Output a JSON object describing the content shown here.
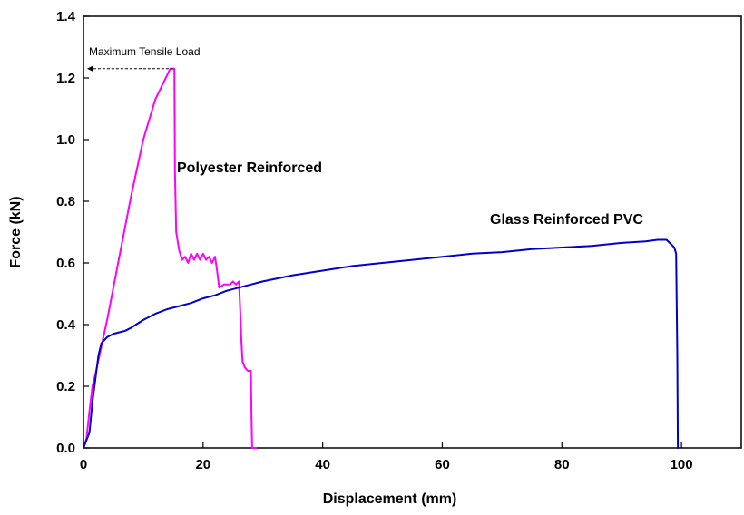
{
  "chart_data": {
    "type": "line",
    "xlabel": "Displacement (mm)",
    "ylabel": "Force (kN)",
    "xlim": [
      0,
      110
    ],
    "ylim": [
      0,
      1.4
    ],
    "x_ticks": [
      0,
      20,
      40,
      60,
      80,
      100
    ],
    "x_tick_labels": [
      "0",
      "20",
      "40",
      "60",
      "80",
      "100"
    ],
    "y_ticks": [
      0,
      0.2,
      0.4,
      0.6,
      0.8,
      1.0,
      1.2,
      1.4
    ],
    "y_tick_labels": [
      "0.0",
      "0.2",
      "0.4",
      "0.6",
      "0.8",
      "1.0",
      "1.2",
      "1.4"
    ],
    "grid": false,
    "series": [
      {
        "name": "Polyester Reinforced",
        "color": "#ff00ff",
        "x": [
          0,
          0.5,
          1.0,
          1.5,
          2,
          4,
          6,
          8,
          10,
          12,
          13.5,
          14.5,
          14.9,
          15.2,
          15.3,
          15.5,
          16.0,
          16.5,
          17.0,
          17.5,
          18.0,
          18.5,
          19.0,
          19.5,
          20.0,
          20.5,
          21.0,
          21.5,
          22.0,
          22.3,
          22.7,
          23.5,
          24.5,
          25.0,
          25.5,
          26.0,
          26.2,
          26.4,
          26.6,
          27.0,
          27.5,
          28.0,
          28.1,
          28.2,
          28.3,
          29.0
        ],
        "y": [
          0,
          0.03,
          0.12,
          0.2,
          0.24,
          0.42,
          0.62,
          0.82,
          1.0,
          1.13,
          1.19,
          1.23,
          1.23,
          1.23,
          0.9,
          0.7,
          0.64,
          0.61,
          0.62,
          0.6,
          0.63,
          0.61,
          0.63,
          0.61,
          0.63,
          0.61,
          0.62,
          0.6,
          0.62,
          0.58,
          0.52,
          0.53,
          0.53,
          0.54,
          0.53,
          0.54,
          0.45,
          0.35,
          0.28,
          0.26,
          0.25,
          0.25,
          0.1,
          0.0,
          0.0,
          0.0
        ]
      },
      {
        "name": "Glass Reinforced PVC",
        "color": "#0000cc",
        "x": [
          0,
          1.0,
          1.5,
          2.5,
          3,
          4,
          5,
          6,
          7,
          8,
          10,
          12,
          14,
          16,
          18,
          20,
          22,
          24,
          26,
          28,
          30,
          35,
          40,
          45,
          50,
          55,
          60,
          65,
          70,
          75,
          80,
          85,
          90,
          94,
          96,
          97.5,
          98.3,
          98.8,
          99.1,
          99.3,
          99.4,
          99.5
        ],
        "y": [
          0,
          0.05,
          0.15,
          0.3,
          0.34,
          0.36,
          0.37,
          0.375,
          0.38,
          0.39,
          0.415,
          0.435,
          0.45,
          0.46,
          0.47,
          0.485,
          0.495,
          0.51,
          0.52,
          0.53,
          0.54,
          0.56,
          0.575,
          0.59,
          0.6,
          0.61,
          0.62,
          0.63,
          0.635,
          0.645,
          0.65,
          0.655,
          0.665,
          0.67,
          0.675,
          0.675,
          0.66,
          0.65,
          0.63,
          0.3,
          0.0,
          0.0
        ]
      }
    ],
    "annotations": [
      {
        "text": "Maximum Tensile Load",
        "x": 15,
        "y": 1.23
      }
    ]
  }
}
